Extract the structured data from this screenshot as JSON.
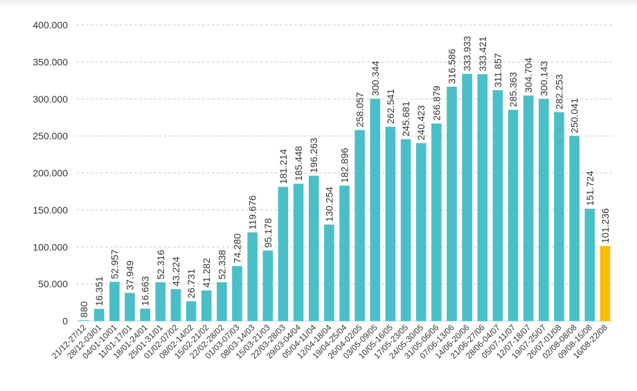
{
  "chart_data": {
    "type": "bar",
    "categories": [
      "21/12-27/12",
      "28/12-03/01",
      "04/01-10/01",
      "11/01-17/01",
      "18/01-24/01",
      "25/01-31/01",
      "01/02-07/02",
      "08/02-14/02",
      "15/02-21/02",
      "22/02-28/02",
      "01/03-07/03",
      "08/03-14/03",
      "15/03-21/03",
      "22/03-28/03",
      "29/03-04/04",
      "05/04-11/04",
      "12/04-18/04",
      "19/04-25/04",
      "26/04-02/05",
      "03/05-09/05",
      "10/05-16/05",
      "17/05-23/05",
      "24/05-30/05",
      "31/05-06/06",
      "07/06-13/06",
      "14/06-20/06",
      "21/06-27/06",
      "28/06-04/07",
      "05/07-11/07",
      "12/07-18/07",
      "19/07-25/07",
      "26/07-01/08",
      "02/08-08/08",
      "09/08-15/08",
      "16/08-22/08"
    ],
    "values": [
      880,
      16351,
      52957,
      37949,
      16663,
      52316,
      43224,
      26731,
      41282,
      52338,
      74280,
      119676,
      95178,
      181214,
      185448,
      196263,
      130254,
      182896,
      258057,
      300344,
      262541,
      245681,
      240423,
      266879,
      316586,
      333933,
      333421,
      311857,
      285363,
      304704,
      300143,
      282253,
      250041,
      151724,
      101236
    ],
    "value_labels": [
      "880",
      "16.351",
      "52.957",
      "37.949",
      "16.663",
      "52.316",
      "43.224",
      "26.731",
      "41.282",
      "52.338",
      "74.280",
      "119.676",
      "95.178",
      "181.214",
      "185.448",
      "196.263",
      "130.254",
      "182.896",
      "258.057",
      "300.344",
      "262.541",
      "245.681",
      "240.423",
      "266.879",
      "316.586",
      "333.933",
      "333.421",
      "311.857",
      "285.363",
      "304.704",
      "300.143",
      "282.253",
      "250.041",
      "151.724",
      "101.236"
    ],
    "ylim": [
      0,
      400000
    ],
    "yticks": [
      0,
      50000,
      100000,
      150000,
      200000,
      250000,
      300000,
      350000,
      400000
    ],
    "ytick_labels": [
      "0",
      "50.000",
      "100.000",
      "150.000",
      "200.000",
      "250.000",
      "300.000",
      "350.000",
      "400.000"
    ],
    "grid": true,
    "colors": {
      "bar": "#4bbfc8",
      "highlight": "#fbbc05"
    },
    "highlight_index": 34
  }
}
